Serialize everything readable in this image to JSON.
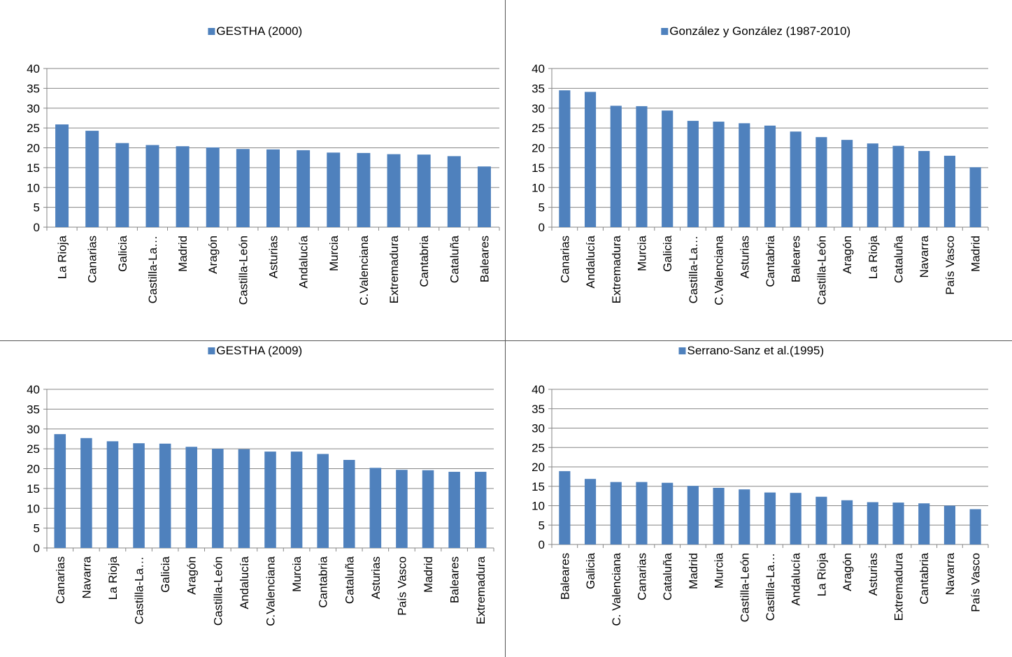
{
  "bar_color": "#4f81bd",
  "grid_color": "#868686",
  "chart_data": [
    {
      "type": "bar",
      "title": "GESTHA (2000)",
      "legend": "GESTHA (2000)",
      "legend_position": "top",
      "ylim": [
        0,
        40
      ],
      "yticks": [
        0,
        5,
        10,
        15,
        20,
        25,
        30,
        35,
        40
      ],
      "grid": true,
      "categories": [
        "La Rioja",
        "Canarias",
        "Galicia",
        "Castilla-La…",
        "Madrid",
        "Aragón",
        "Castilla-León",
        "Asturias",
        "Andalucía",
        "Murcia",
        "C.Valenciana",
        "Extremadura",
        "Cantabria",
        "Cataluña",
        "Baleares"
      ],
      "values": [
        25.9,
        24.3,
        21.2,
        20.7,
        20.4,
        20.1,
        19.7,
        19.6,
        19.4,
        18.8,
        18.7,
        18.4,
        18.3,
        17.9,
        15.3
      ]
    },
    {
      "type": "bar",
      "title": "González y González (1987-2010)",
      "legend": "González y González (1987-2010)",
      "legend_position": "top",
      "ylim": [
        0,
        40
      ],
      "yticks": [
        0,
        5,
        10,
        15,
        20,
        25,
        30,
        35,
        40
      ],
      "grid": true,
      "categories": [
        "Canarias",
        "Andalucía",
        "Extremadura",
        "Murcia",
        "Galicia",
        "Castilla-La…",
        "C.Valenciana",
        "Asturias",
        "Cantabria",
        "Baleares",
        "Castilla-León",
        "Aragón",
        "La Rioja",
        "Cataluña",
        "Navarra",
        "País Vasco",
        "Madrid"
      ],
      "values": [
        34.5,
        34.1,
        30.6,
        30.5,
        29.4,
        26.8,
        26.6,
        26.2,
        25.6,
        24.1,
        22.7,
        22.0,
        21.1,
        20.5,
        19.2,
        18.0,
        15.1
      ]
    },
    {
      "type": "bar",
      "title": "GESTHA (2009)",
      "legend": "GESTHA (2009)",
      "legend_position": "top",
      "ylim": [
        0,
        40
      ],
      "yticks": [
        0,
        5,
        10,
        15,
        20,
        25,
        30,
        35,
        40
      ],
      "grid": true,
      "categories": [
        "Canarias",
        "Navarra",
        "La Rioja",
        "Castilla-La…",
        "Galicia",
        "Aragón",
        "Castilla-León",
        "Andalucía",
        "C.Valenciana",
        "Murcia",
        "Cantabria",
        "Cataluña",
        "Asturias",
        "País Vasco",
        "Madrid",
        "Baleares",
        "Extremadura"
      ],
      "values": [
        28.7,
        27.7,
        26.9,
        26.4,
        26.3,
        25.5,
        25.0,
        24.9,
        24.3,
        24.3,
        23.7,
        22.2,
        20.2,
        19.7,
        19.6,
        19.2,
        19.2
      ]
    },
    {
      "type": "bar",
      "title": "Serrano-Sanz et al.(1995)",
      "legend": "Serrano-Sanz et al.(1995)",
      "legend_position": "top",
      "ylim": [
        0,
        40
      ],
      "yticks": [
        0,
        5,
        10,
        15,
        20,
        25,
        30,
        35,
        40
      ],
      "grid": true,
      "categories": [
        "Baleares",
        "Galicia",
        "C. Valenciana",
        "Canarias",
        "Cataluña",
        "Madrid",
        "Murcia",
        "Castilla-León",
        "Castilla-La…",
        "Andalucía",
        "La Rioja",
        "Aragón",
        "Asturias",
        "Extremadura",
        "Cantabria",
        "Navarra",
        "País Vasco"
      ],
      "values": [
        18.9,
        16.9,
        16.1,
        16.1,
        15.9,
        15.1,
        14.6,
        14.2,
        13.4,
        13.3,
        12.3,
        11.4,
        10.9,
        10.8,
        10.6,
        10.0,
        9.1
      ]
    }
  ]
}
